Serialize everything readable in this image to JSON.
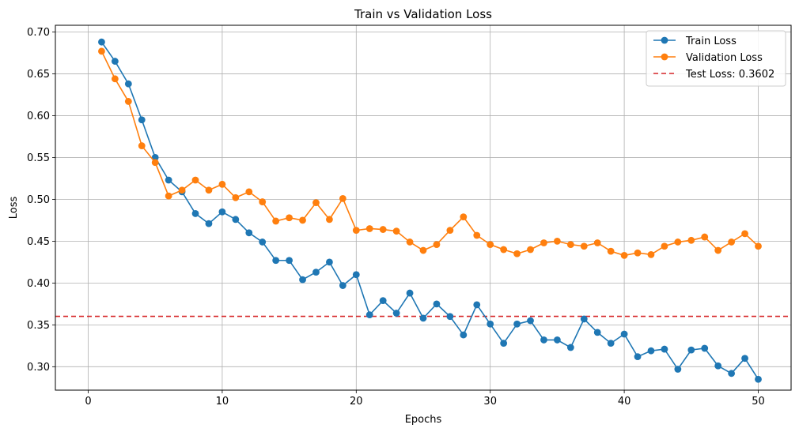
{
  "chart_data": {
    "type": "line",
    "title": "Train vs Validation Loss",
    "xlabel": "Epochs",
    "ylabel": "Loss",
    "xlim": [
      -2.45,
      52.45
    ],
    "ylim": [
      0.272,
      0.708
    ],
    "xticks": [
      "0",
      "10",
      "20",
      "30",
      "40",
      "50"
    ],
    "xtick_values": [
      0,
      10,
      20,
      30,
      40,
      50
    ],
    "yticks": [
      "0.30",
      "0.35",
      "0.40",
      "0.45",
      "0.50",
      "0.55",
      "0.60",
      "0.65",
      "0.70"
    ],
    "ytick_values": [
      0.3,
      0.35,
      0.4,
      0.45,
      0.5,
      0.55,
      0.6,
      0.65,
      0.7
    ],
    "grid": true,
    "legend_position": "top-right",
    "x": [
      1,
      2,
      3,
      4,
      5,
      6,
      7,
      8,
      9,
      10,
      11,
      12,
      13,
      14,
      15,
      16,
      17,
      18,
      19,
      20,
      21,
      22,
      23,
      24,
      25,
      26,
      27,
      28,
      29,
      30,
      31,
      32,
      33,
      34,
      35,
      36,
      37,
      38,
      39,
      40,
      41,
      42,
      43,
      44,
      45,
      46,
      47,
      48,
      49,
      50
    ],
    "series": [
      {
        "name": "Train Loss",
        "color": "#1f77b4",
        "values": [
          0.688,
          0.665,
          0.638,
          0.595,
          0.55,
          0.523,
          0.509,
          0.483,
          0.471,
          0.485,
          0.476,
          0.46,
          0.449,
          0.427,
          0.427,
          0.404,
          0.413,
          0.425,
          0.397,
          0.41,
          0.362,
          0.379,
          0.364,
          0.388,
          0.358,
          0.375,
          0.36,
          0.338,
          0.374,
          0.351,
          0.328,
          0.351,
          0.355,
          0.332,
          0.332,
          0.323,
          0.357,
          0.341,
          0.328,
          0.339,
          0.312,
          0.319,
          0.321,
          0.297,
          0.32,
          0.322,
          0.301,
          0.292,
          0.31,
          0.285
        ]
      },
      {
        "name": "Validation Loss",
        "color": "#ff7f0e",
        "values": [
          0.677,
          0.644,
          0.617,
          0.564,
          0.544,
          0.504,
          0.511,
          0.523,
          0.511,
          0.518,
          0.502,
          0.509,
          0.497,
          0.474,
          0.478,
          0.475,
          0.496,
          0.476,
          0.501,
          0.463,
          0.465,
          0.464,
          0.462,
          0.449,
          0.439,
          0.446,
          0.463,
          0.479,
          0.457,
          0.446,
          0.44,
          0.435,
          0.44,
          0.448,
          0.45,
          0.446,
          0.444,
          0.448,
          0.438,
          0.433,
          0.436,
          0.434,
          0.444,
          0.449,
          0.451,
          0.455,
          0.439,
          0.449,
          0.459,
          0.444
        ]
      }
    ],
    "hlines": [
      {
        "name": "Test Loss: 0.3602",
        "value": 0.3602,
        "color": "#d62728",
        "style": "dashed"
      }
    ]
  }
}
